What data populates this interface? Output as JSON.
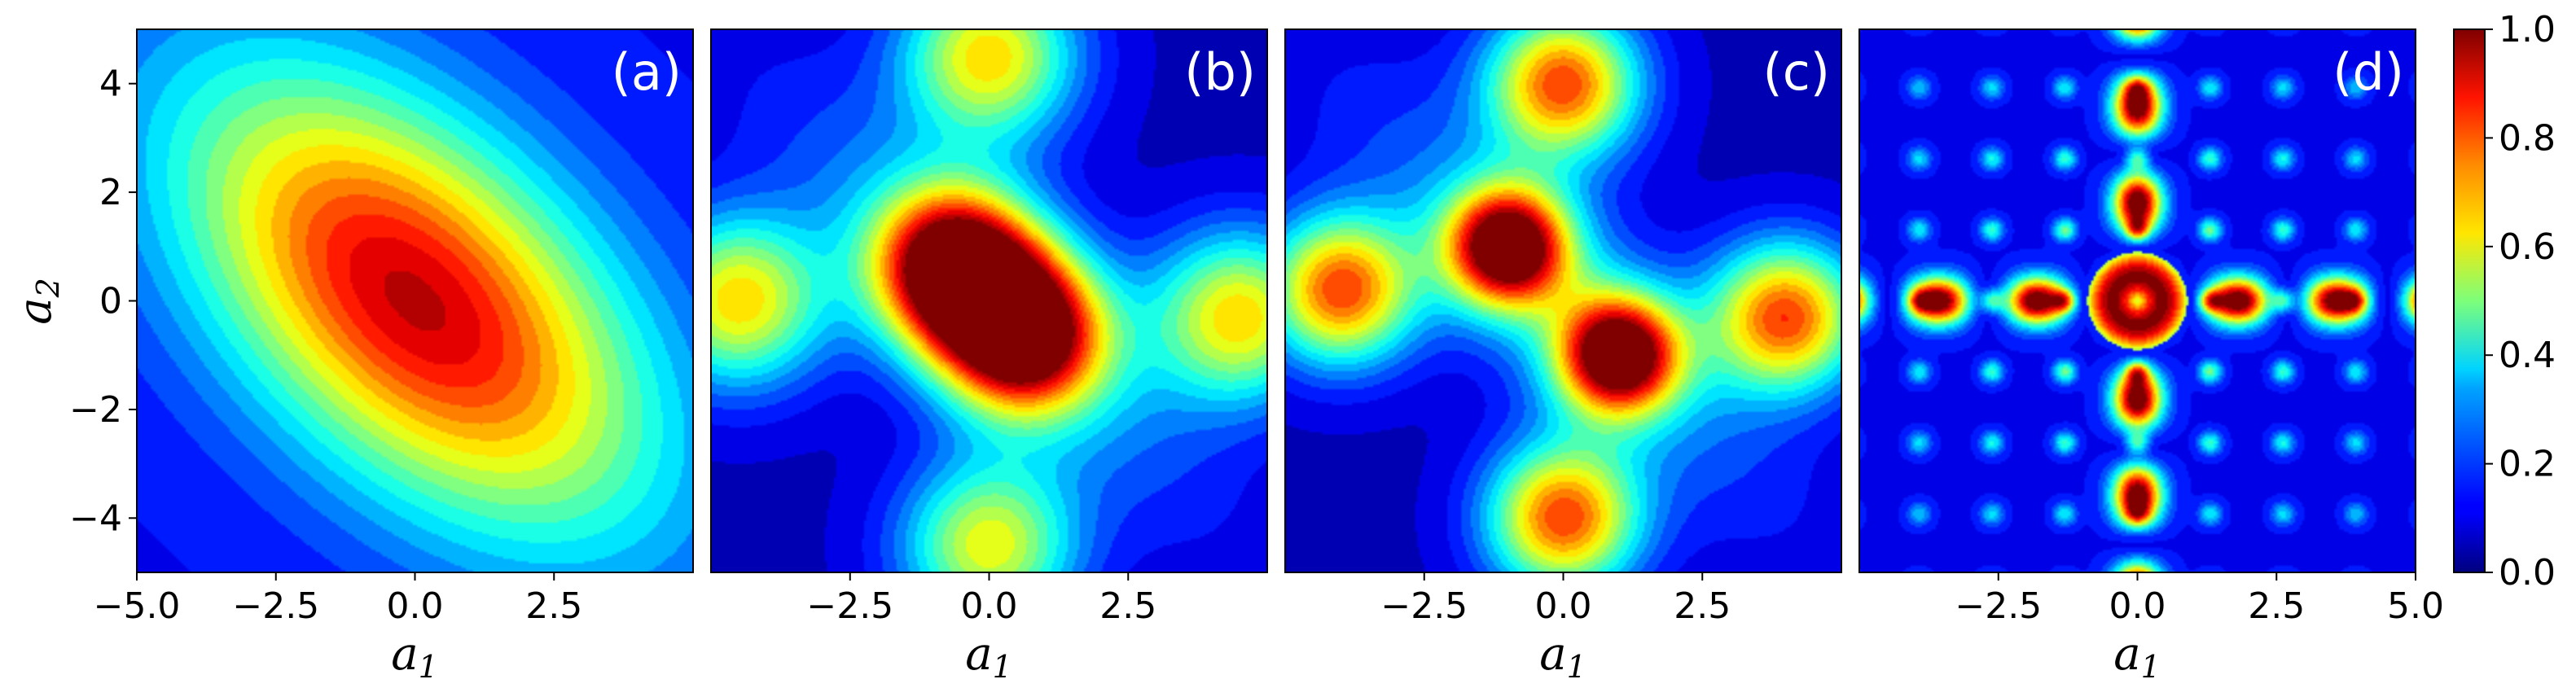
{
  "chart_data": {
    "type": "heatmap",
    "colormap": "jet",
    "x_range": [
      -5,
      5
    ],
    "y_range": [
      -5,
      5
    ],
    "colorbar": {
      "range": [
        0,
        1
      ],
      "ticks": [
        "0.0",
        "0.2",
        "0.4",
        "0.6",
        "0.8",
        "1.0"
      ]
    },
    "y_ticks": [
      "4",
      "2",
      "0",
      "−2",
      "−4"
    ],
    "y_tick_values": [
      4,
      2,
      0,
      -2,
      -4
    ],
    "panels": [
      {
        "label": "(a)",
        "xlabel": "a",
        "xlabel_sub": "1",
        "show_ylabel": true,
        "ylabel": "a",
        "ylabel_sub": "2",
        "x_ticks": [
          "−5.0",
          "−2.5",
          "0.0",
          "2.5"
        ],
        "x_tick_values": [
          -5,
          -2.5,
          0,
          2.5
        ],
        "peaks": [
          [
            0,
            0,
            0.82
          ]
        ],
        "description": "single broad maximum along anti-diagonal"
      },
      {
        "label": "(b)",
        "xlabel": "a",
        "xlabel_sub": "1",
        "show_ylabel": false,
        "x_ticks": [
          "−2.5",
          "0.0",
          "2.5"
        ],
        "x_tick_values": [
          -2.5,
          0,
          2.5
        ],
        "peaks": [
          [
            -0.6,
            0.6,
            1.0
          ],
          [
            0.6,
            -0.6,
            1.0
          ],
          [
            0,
            4.5,
            0.6
          ],
          [
            0,
            -4.5,
            0.55
          ],
          [
            -4.5,
            0,
            0.6
          ],
          [
            4.5,
            -0.3,
            0.6
          ]
        ]
      },
      {
        "label": "(c)",
        "xlabel": "a",
        "xlabel_sub": "1",
        "show_ylabel": false,
        "x_ticks": [
          "−2.5",
          "0.0",
          "2.5"
        ],
        "x_tick_values": [
          -2.5,
          0,
          2.5
        ],
        "peaks": [
          [
            -1,
            1,
            1.0
          ],
          [
            1,
            -1,
            1.0
          ],
          [
            0,
            4,
            0.75
          ],
          [
            0,
            -4,
            0.75
          ],
          [
            -4,
            0.2,
            0.75
          ],
          [
            4,
            -0.3,
            0.75
          ]
        ]
      },
      {
        "label": "(d)",
        "xlabel": "a",
        "xlabel_sub": "1",
        "show_ylabel": false,
        "x_ticks": [
          "−2.5",
          "0.0",
          "2.5",
          "5.0"
        ],
        "x_tick_values": [
          -2.5,
          0,
          2.5,
          5
        ],
        "description": "oscillatory cross pattern with ring at origin"
      }
    ]
  }
}
